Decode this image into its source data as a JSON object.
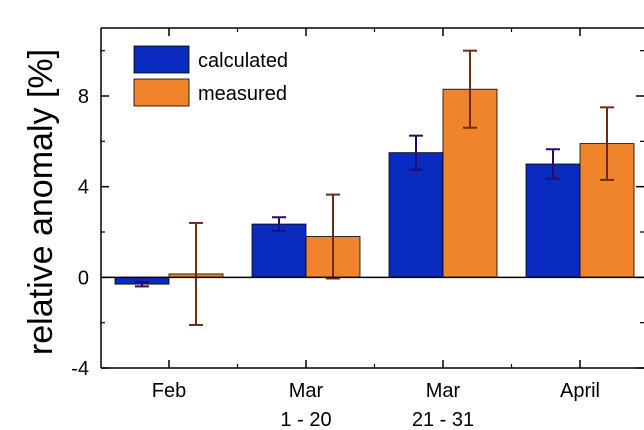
{
  "chart_data": {
    "type": "bar",
    "ylabel": "relative anomaly [%]",
    "categories": [
      [
        "Feb"
      ],
      [
        "Mar",
        "1 - 20"
      ],
      [
        "Mar",
        "21 - 31"
      ],
      [
        "April"
      ]
    ],
    "series": [
      {
        "name": "calculated",
        "color": "#0a2bbf",
        "error_color": "#2a0a6b",
        "values": [
          -0.3,
          2.35,
          5.5,
          5.0
        ],
        "errors": [
          0.1,
          0.3,
          0.75,
          0.65
        ]
      },
      {
        "name": "measured",
        "color": "#f0842c",
        "error_color": "#6e2a10",
        "values": [
          0.15,
          1.8,
          8.3,
          5.9
        ],
        "errors": [
          2.25,
          1.85,
          1.7,
          1.6
        ]
      }
    ],
    "ylim": [
      -4,
      11
    ],
    "yticks": [
      "8",
      "4",
      "0",
      "-4"
    ],
    "ytick_values": [
      8,
      4,
      0,
      -4
    ],
    "legend": "top-left",
    "grid": false
  }
}
